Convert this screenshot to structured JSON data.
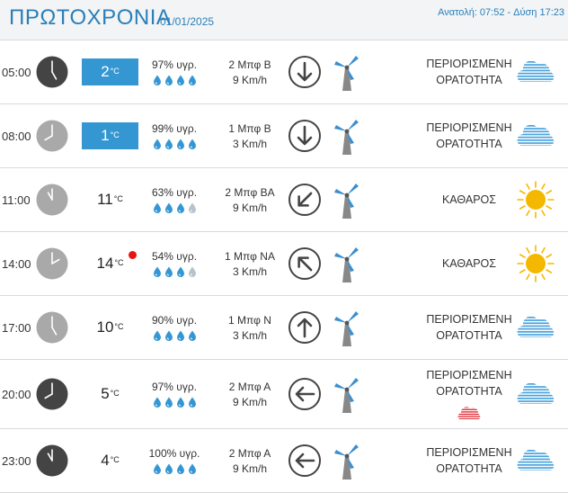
{
  "header": {
    "day": "ΠΡΩΤΟΧΡΟΝΙΑ",
    "date": "01/01/2025",
    "sunrise": "Ανατολή: 07:52",
    "sunset": "Δύση 17:23",
    "separator": "-"
  },
  "colors": {
    "accent": "#2a7fb8",
    "cold_badge": "#3597d2",
    "heat_dot": "#e8140f",
    "drop": "#3597d2",
    "sun": "#f5b800",
    "cloud": "#4aa3dc",
    "rain_cloud": "#e0333b"
  },
  "rows": [
    {
      "time": "05:00",
      "clock": "dark",
      "temp": "2",
      "unit": "°C",
      "cold": true,
      "heat": false,
      "hum": "97% υγρ.",
      "drops": 4,
      "wind_bf": "2 Μπφ Β",
      "wind_kmh": "9 Km/h",
      "arrow": "down",
      "cond": [
        "ΠΕΡΙΟΡΙΣΜΕΝΗ",
        "ΟΡΑΤΟΤΗΤΑ"
      ],
      "icon": "fog-cloud-icon",
      "rain": false
    },
    {
      "time": "08:00",
      "clock": "light",
      "temp": "1",
      "unit": "°C",
      "cold": true,
      "heat": false,
      "hum": "99% υγρ.",
      "drops": 4,
      "wind_bf": "1 Μπφ Β",
      "wind_kmh": "3 Km/h",
      "arrow": "down",
      "cond": [
        "ΠΕΡΙΟΡΙΣΜΕΝΗ",
        "ΟΡΑΤΟΤΗΤΑ"
      ],
      "icon": "fog-cloud-icon",
      "rain": false
    },
    {
      "time": "11:00",
      "clock": "light",
      "temp": "11",
      "unit": "°C",
      "cold": false,
      "heat": false,
      "hum": "63% υγρ.",
      "drops": 3,
      "wind_bf": "2 Μπφ ΒΑ",
      "wind_kmh": "9 Km/h",
      "arrow": "down-left",
      "cond": [
        "ΚΑΘΑΡΟΣ"
      ],
      "icon": "sun-icon",
      "rain": false
    },
    {
      "time": "14:00",
      "clock": "light",
      "temp": "14",
      "unit": "°C",
      "cold": false,
      "heat": true,
      "hum": "54% υγρ.",
      "drops": 3,
      "wind_bf": "1 Μπφ ΝΑ",
      "wind_kmh": "3 Km/h",
      "arrow": "up-left",
      "cond": [
        "ΚΑΘΑΡΟΣ"
      ],
      "icon": "sun-icon",
      "rain": false
    },
    {
      "time": "17:00",
      "clock": "light",
      "temp": "10",
      "unit": "°C",
      "cold": false,
      "heat": false,
      "hum": "90% υγρ.",
      "drops": 4,
      "wind_bf": "1 Μπφ Ν",
      "wind_kmh": "3 Km/h",
      "arrow": "up",
      "cond": [
        "ΠΕΡΙΟΡΙΣΜΕΝΗ",
        "ΟΡΑΤΟΤΗΤΑ"
      ],
      "icon": "fog-cloud-icon",
      "rain": false
    },
    {
      "time": "20:00",
      "clock": "dark",
      "temp": "5",
      "unit": "°C",
      "cold": false,
      "heat": false,
      "hum": "97% υγρ.",
      "drops": 4,
      "wind_bf": "2 Μπφ Α",
      "wind_kmh": "9 Km/h",
      "arrow": "left",
      "cond": [
        "ΠΕΡΙΟΡΙΣΜΕΝΗ",
        "ΟΡΑΤΟΤΗΤΑ"
      ],
      "icon": "fog-cloud-icon",
      "rain": true
    },
    {
      "time": "23:00",
      "clock": "dark",
      "temp": "4",
      "unit": "°C",
      "cold": false,
      "heat": false,
      "hum": "100% υγρ.",
      "drops": 4,
      "wind_bf": "2 Μπφ Α",
      "wind_kmh": "9 Km/h",
      "arrow": "left",
      "cond": [
        "ΠΕΡΙΟΡΙΣΜΕΝΗ",
        "ΟΡΑΤΟΤΗΤΑ"
      ],
      "icon": "fog-cloud-icon",
      "rain": false
    }
  ]
}
